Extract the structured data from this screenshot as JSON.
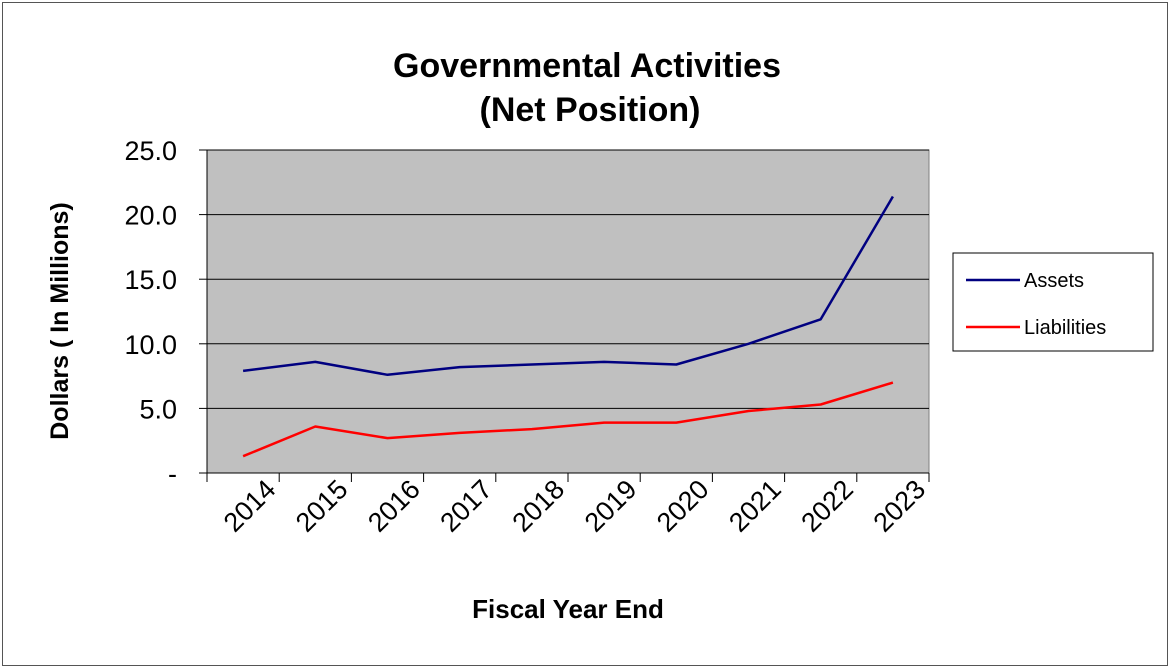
{
  "chart_data": {
    "type": "line",
    "title": "Governmental Activities",
    "subtitle": "(Net Position)",
    "xlabel": "Fiscal Year End",
    "ylabel": "Dollars ( In Millions)",
    "categories": [
      "2014",
      "2015",
      "2016",
      "2017",
      "2018",
      "2019",
      "2020",
      "2021",
      "2022",
      "2023"
    ],
    "yticks": [
      "-",
      "5.0",
      "10.0",
      "15.0",
      "20.0",
      "25.0"
    ],
    "ylim": [
      0,
      25
    ],
    "grid": true,
    "legend_position": "right",
    "series": [
      {
        "name": "Assets",
        "color": "#000080",
        "values": [
          7.9,
          8.6,
          7.6,
          8.2,
          8.4,
          8.6,
          8.4,
          10.0,
          11.9,
          21.4
        ]
      },
      {
        "name": "Liabilities",
        "color": "#ff0000",
        "values": [
          1.3,
          3.6,
          2.7,
          3.1,
          3.4,
          3.9,
          3.9,
          4.8,
          5.3,
          7.0
        ]
      }
    ],
    "plot_background": "#c0c0c0"
  }
}
